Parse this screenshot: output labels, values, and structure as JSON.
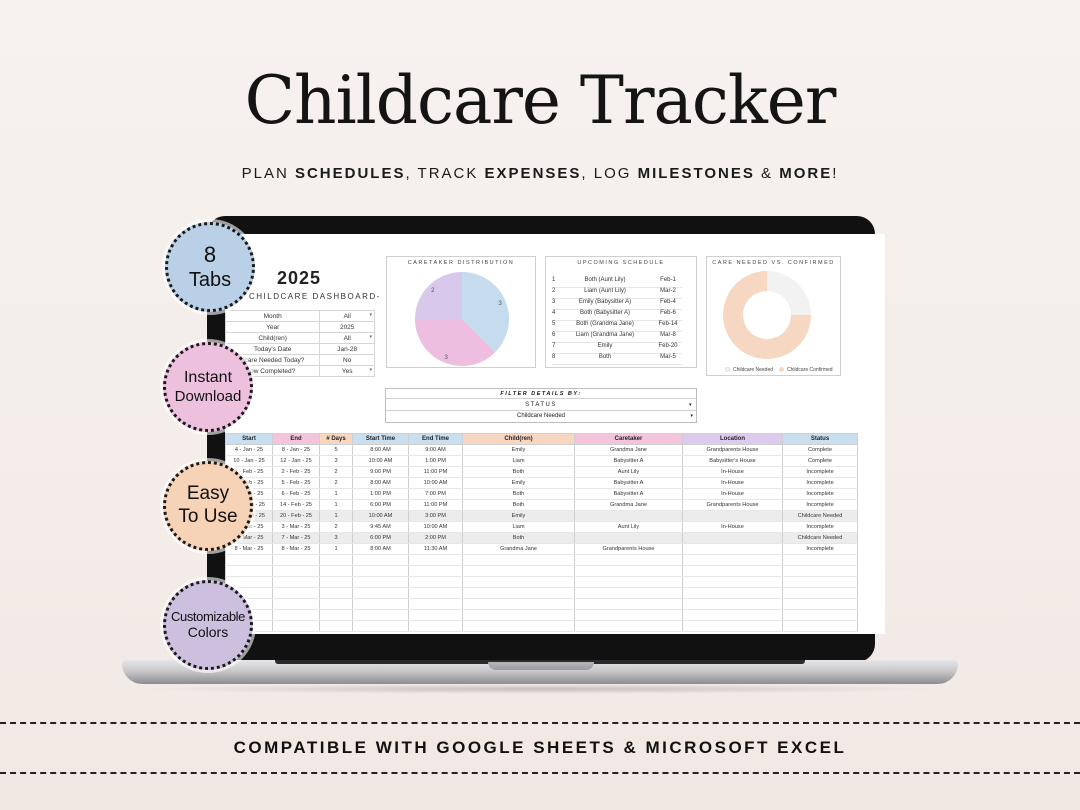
{
  "header": {
    "title": "Childcare Tracker",
    "sub_plan": "PLAN",
    "sub_schedules": "SCHEDULES",
    "sub_comma1": ", TRACK",
    "sub_expenses": "EXPENSES",
    "sub_comma2": ", LOG",
    "sub_milestones": "MILESTONES",
    "sub_amp": "&",
    "sub_more": "MORE",
    "sub_bang": "!"
  },
  "badges": [
    {
      "line1": "8",
      "line2": "Tabs",
      "color": "#b9d0e6"
    },
    {
      "line1": "Instant",
      "line2": "Download",
      "color": "#edc1de"
    },
    {
      "line1": "Easy",
      "line2": "To Use",
      "color": "#f6d2b6"
    },
    {
      "line1": "Customizable",
      "line2": "Colors",
      "color": "#cdc0df"
    }
  ],
  "dashboard": {
    "year": "2025",
    "subtitle": "CHILDCARE DASHBOARD-",
    "filters": [
      {
        "key": "Month",
        "value": "All",
        "dropdown": true
      },
      {
        "key": "Year",
        "value": "2025",
        "dropdown": false
      },
      {
        "key": "Child(ren)",
        "value": "All",
        "dropdown": true
      },
      {
        "key": "Today's Date",
        "value": "Jan-28",
        "dropdown": false
      },
      {
        "key": "dcare Needed Today?",
        "value": "No",
        "dropdown": false
      },
      {
        "key": "ow Completed?",
        "value": "Yes",
        "dropdown": true
      }
    ],
    "caretaker_title": "CARETAKER DISTRIBUTION",
    "caretaker_chart": {
      "type": "pie",
      "labels": [
        "3",
        "3",
        "2"
      ],
      "values": [
        3,
        3,
        2
      ],
      "colors": [
        "#c5dcef",
        "#edbedf",
        "#d8c8ec"
      ]
    },
    "schedule_title": "UPCOMING SCHEDULE",
    "schedule": [
      {
        "n": "1",
        "name": "Both (Aunt Lily)",
        "date": "Feb-1"
      },
      {
        "n": "2",
        "name": "Liam (Aunt Lily)",
        "date": "Mar-2"
      },
      {
        "n": "3",
        "name": "Emily (Babysitter A)",
        "date": "Feb-4"
      },
      {
        "n": "4",
        "name": "Both (Babysitter A)",
        "date": "Feb-6"
      },
      {
        "n": "5",
        "name": "Both (Grandma Jane)",
        "date": "Feb-14"
      },
      {
        "n": "6",
        "name": "Liam (Grandma Jane)",
        "date": "Mar-8"
      },
      {
        "n": "7",
        "name": "Emily",
        "date": "Feb-20"
      },
      {
        "n": "8",
        "name": "Both",
        "date": "Mar-5"
      }
    ],
    "care_title": "CARE NEEDED VS. CONFIRMED",
    "care_chart": {
      "type": "donut",
      "series": [
        {
          "name": "Childcare Needed",
          "value": 3,
          "color": "#f2f2f2"
        },
        {
          "name": "Childcare Confirmed",
          "value": 9,
          "color": "#f6d8c2"
        }
      ]
    },
    "filter_by_title": "FILTER DETAILS BY:",
    "filter_by_field": "STATUS",
    "filter_by_value": "Childcare Needed",
    "columns": [
      {
        "label": "Start",
        "color": "#c9dff0"
      },
      {
        "label": "End",
        "color": "#f4c4dd"
      },
      {
        "label": "# Days",
        "color": "#f7d7bf"
      },
      {
        "label": "Start Time",
        "color": "#c9dff0"
      },
      {
        "label": "End Time",
        "color": "#c9dff0"
      },
      {
        "label": "Child(ren)",
        "color": "#f7d7bf"
      },
      {
        "label": "Caretaker",
        "color": "#f4c4dd"
      },
      {
        "label": "Location",
        "color": "#dccbec"
      },
      {
        "label": "Status",
        "color": "#c9dff0"
      }
    ],
    "rows": [
      [
        "4 - Jan - 25",
        "8 - Jan - 25",
        "5",
        "8:00 AM",
        "9:00 AM",
        "Emily",
        "Grandma Jane",
        "Grandparents House",
        "Complete"
      ],
      [
        "10 - Jan - 25",
        "12 - Jan - 25",
        "3",
        "10:00 AM",
        "1:00 PM",
        "Liam",
        "Babysitter A",
        "Babysitter's House",
        "Complete"
      ],
      [
        "1 - Feb - 25",
        "2 - Feb - 25",
        "2",
        "9:00 PM",
        "11:00 PM",
        "Both",
        "Aunt Lily",
        "In-House",
        "Incomplete"
      ],
      [
        "4 - Feb - 25",
        "5 - Feb - 25",
        "2",
        "8:00 AM",
        "10:00 AM",
        "Emily",
        "Babysitter A",
        "In-House",
        "Incomplete"
      ],
      [
        "6 - Feb - 25",
        "6 - Feb - 25",
        "1",
        "1:00 PM",
        "7:00 PM",
        "Both",
        "Babysitter A",
        "In-House",
        "Incomplete"
      ],
      [
        "14 - Feb - 25",
        "14 - Feb - 25",
        "1",
        "6:00 PM",
        "11:00 PM",
        "Both",
        "Grandma Jane",
        "Grandparents House",
        "Incomplete"
      ],
      [
        "20 - Feb - 25",
        "20 - Feb - 25",
        "1",
        "10:00 AM",
        "3:00 PM",
        "Emily",
        "",
        "",
        "Childcare Needed"
      ],
      [
        "2 - Mar - 25",
        "3 - Mar - 25",
        "2",
        "9:45 AM",
        "10:00 AM",
        "Liam",
        "Aunt Lily",
        "In-House",
        "Incomplete"
      ],
      [
        "5 - Mar - 25",
        "7 - Mar - 25",
        "3",
        "6:00 PM",
        "2:00 PM",
        "Both",
        "",
        "",
        "Childcare Needed"
      ],
      [
        "8 - Mar - 25",
        "8 - Mar - 25",
        "1",
        "8:00 AM",
        "11:30 AM",
        "Grandma Jane",
        "Grandparents House",
        "",
        "Incomplete"
      ]
    ],
    "highlighted_rows": [
      6,
      8
    ]
  },
  "footer": {
    "text": "COMPATIBLE WITH GOOGLE SHEETS & MICROSOFT EXCEL"
  }
}
